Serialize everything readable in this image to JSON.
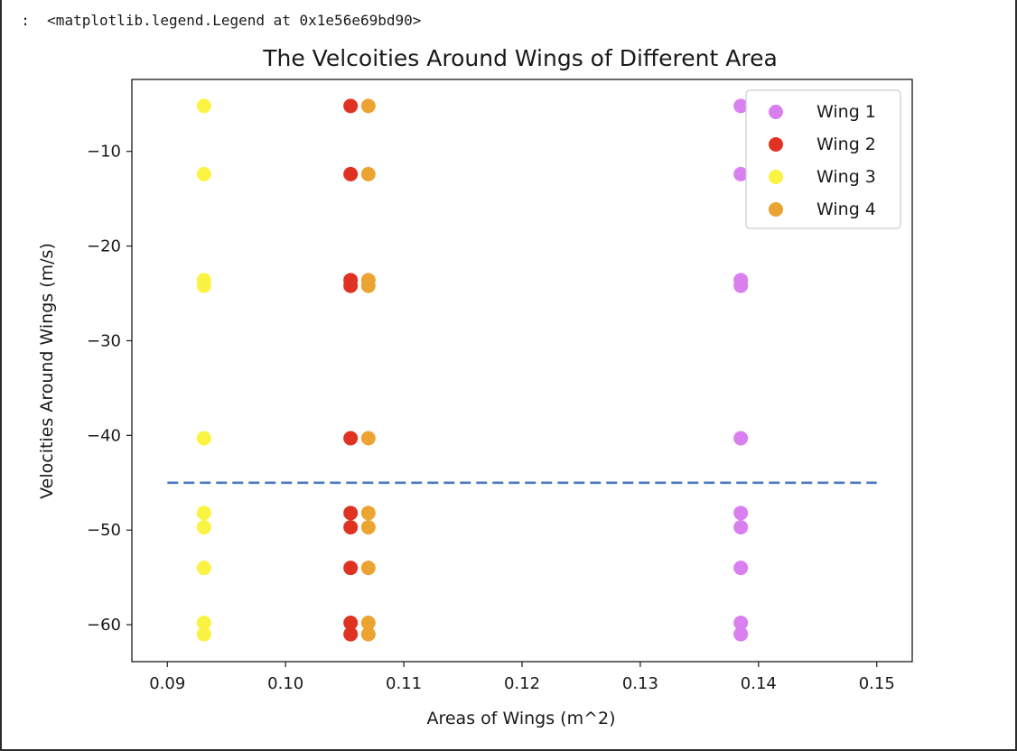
{
  "cell_output": {
    "prompt": ":",
    "text": "<matplotlib.legend.Legend at 0x1e56e69bd90>"
  },
  "chart_data": {
    "type": "scatter",
    "title": "The Velcoities Around Wings of Different Area",
    "xlabel": "Areas of Wings (m^2)",
    "ylabel": "Velocities Around Wings (m/s)",
    "xlim": [
      0.087,
      0.153
    ],
    "ylim": [
      -63.9,
      -2.4
    ],
    "xticks": [
      0.09,
      0.1,
      0.11,
      0.12,
      0.13,
      0.14,
      0.15
    ],
    "xtick_labels": [
      "0.09",
      "0.10",
      "0.11",
      "0.12",
      "0.13",
      "0.14",
      "0.15"
    ],
    "yticks": [
      -10,
      -20,
      -30,
      -40,
      -50,
      -60
    ],
    "ytick_labels": [
      "−10",
      "−20",
      "−30",
      "−40",
      "−50",
      "−60"
    ],
    "grid": false,
    "legend_position": "top-right",
    "hline": {
      "y": -45,
      "x_start": 0.09,
      "x_end": 0.15,
      "style": "dashed",
      "color": "#4a7abf"
    },
    "series": [
      {
        "name": "Wing 1",
        "color": "#d97ff0",
        "x": 0.1385,
        "y": [
          -5.2,
          -12.4,
          -23.6,
          -24.2,
          -40.3,
          -48.2,
          -49.7,
          -54.0,
          -59.8,
          -61.0
        ]
      },
      {
        "name": "Wing 2",
        "color": "#e03222",
        "x": 0.1055,
        "y": [
          -5.2,
          -12.4,
          -23.6,
          -24.2,
          -40.3,
          -48.2,
          -49.7,
          -54.0,
          -59.8,
          -61.0
        ]
      },
      {
        "name": "Wing 3",
        "color": "#fbf342",
        "x": 0.0931,
        "y": [
          -5.2,
          -12.4,
          -23.6,
          -24.2,
          -40.3,
          -48.2,
          -49.7,
          -54.0,
          -59.8,
          -61.0
        ]
      },
      {
        "name": "Wing 4",
        "color": "#eba432",
        "x": 0.107,
        "y": [
          -5.2,
          -12.4,
          -23.6,
          -24.2,
          -40.3,
          -48.2,
          -49.7,
          -54.0,
          -59.8,
          -61.0
        ]
      }
    ]
  }
}
